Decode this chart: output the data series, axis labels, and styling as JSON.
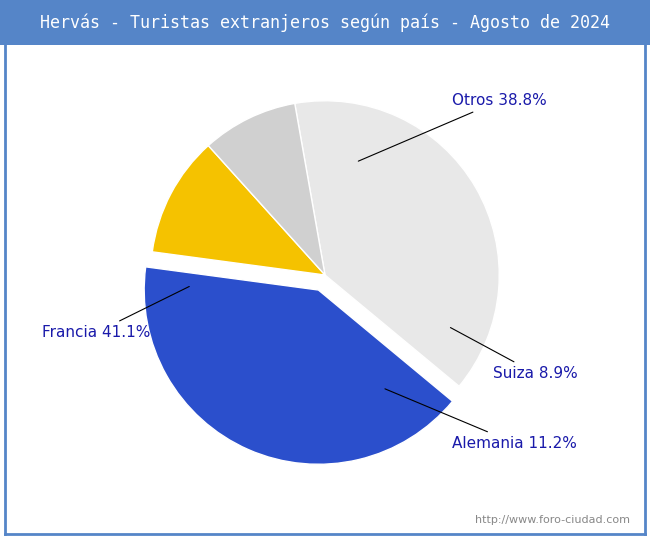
{
  "title": "Hervás - Turistas extranjeros según país - Agosto de 2024",
  "labels": [
    "Otros",
    "Francia",
    "Alemania",
    "Suiza"
  ],
  "values": [
    38.8,
    41.1,
    11.2,
    8.9
  ],
  "colors": [
    "#e8e8e8",
    "#2b4fcc",
    "#f5c200",
    "#d0d0d0"
  ],
  "label_texts": [
    "Otros 38.8%",
    "Francia 41.1%",
    "Alemania 11.2%",
    "Suiza 8.9%"
  ],
  "header_color": "#5585c8",
  "header_text_color": "#ffffff",
  "title_fontsize": 12,
  "label_fontsize": 11,
  "url_text": "http://www.foro-ciudad.com",
  "url_fontsize": 8,
  "border_color": "#5585c8",
  "background_color": "#ffffff",
  "label_color": "#1a1aaa",
  "startangle": 100,
  "explode": [
    0.0,
    0.08,
    0.0,
    0.0
  ],
  "counterclock": false
}
